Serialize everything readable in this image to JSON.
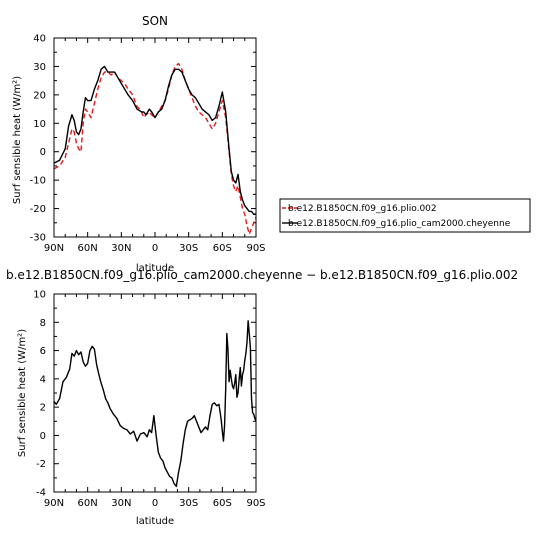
{
  "chart_data": [
    {
      "type": "line",
      "title": "SON",
      "xlabel": "latitude",
      "ylabel": "Surf sensible heat (W/m²)",
      "xlim": [
        90,
        -90
      ],
      "ylim": [
        -30,
        40
      ],
      "x_ticks": [
        "90N",
        "60N",
        "30N",
        "0",
        "30S",
        "60S",
        "90S"
      ],
      "y_ticks": [
        "40",
        "30",
        "20",
        "10",
        "0",
        "-10",
        "-20",
        "-30"
      ],
      "legend_position": "right",
      "series": [
        {
          "name": "b.e12.B1850CN.f09_g16.plio.002",
          "color": "#e31a1c",
          "style": "dashed",
          "x": [
            90,
            85,
            80,
            77,
            74,
            72,
            70,
            68,
            66,
            64,
            62,
            60,
            57,
            54,
            51,
            48,
            45,
            42,
            39,
            36,
            33,
            30,
            27,
            24,
            20,
            16,
            12,
            10,
            8,
            5,
            3,
            0,
            -3,
            -6,
            -9,
            -12,
            -15,
            -18,
            -21,
            -24,
            -27,
            -30,
            -33,
            -36,
            -39,
            -42,
            -45,
            -48,
            -51,
            -54,
            -57,
            -60,
            -63,
            -66,
            -68,
            -70,
            -72,
            -74,
            -76,
            -78,
            -80,
            -82,
            -84,
            -86,
            -88,
            -90
          ],
          "y": [
            -6,
            -5,
            -2,
            3,
            8,
            7,
            3,
            1,
            0,
            10,
            15,
            14,
            12,
            17,
            22,
            26,
            28,
            28,
            27,
            28,
            26,
            25,
            24,
            22,
            20,
            16,
            14,
            12,
            13,
            14,
            13,
            12,
            14,
            16,
            18,
            22,
            27,
            30,
            31,
            29,
            25,
            22,
            19,
            16,
            14,
            13,
            12,
            10,
            8,
            10,
            14,
            18,
            12,
            0,
            -8,
            -12,
            -14,
            -12,
            -16,
            -20,
            -22,
            -26,
            -29,
            -27,
            -25,
            -23
          ]
        },
        {
          "name": "b.e12.B1850CN.f09_g16.plio_cam2000.cheyenne",
          "color": "#000000",
          "style": "solid",
          "x": [
            90,
            85,
            80,
            77,
            74,
            72,
            70,
            68,
            66,
            64,
            62,
            60,
            57,
            54,
            51,
            48,
            45,
            42,
            39,
            36,
            33,
            30,
            27,
            24,
            20,
            16,
            12,
            10,
            8,
            5,
            3,
            0,
            -3,
            -6,
            -9,
            -12,
            -15,
            -18,
            -21,
            -24,
            -27,
            -30,
            -33,
            -36,
            -39,
            -42,
            -45,
            -48,
            -51,
            -54,
            -57,
            -60,
            -63,
            -66,
            -68,
            -70,
            -72,
            -74,
            -76,
            -78,
            -80,
            -82,
            -84,
            -86,
            -88,
            -90
          ],
          "y": [
            -4,
            -3,
            1,
            9,
            13,
            11,
            7,
            6,
            8,
            14,
            19,
            18,
            18,
            22,
            25,
            29,
            30,
            28,
            28,
            28,
            26,
            24,
            22,
            20,
            18,
            15,
            14,
            14,
            13,
            15,
            14,
            12,
            14,
            15,
            18,
            23,
            27,
            29,
            29,
            28,
            25,
            22,
            20,
            19,
            17,
            15,
            14,
            13,
            11,
            12,
            16,
            21,
            14,
            1,
            -7,
            -10,
            -11,
            -8,
            -14,
            -17,
            -19,
            -20,
            -21,
            -21,
            -22,
            -22
          ]
        }
      ]
    },
    {
      "type": "line",
      "title": "b.e12.B1850CN.f09_g16.plio_cam2000.cheyenne − b.e12.B1850CN.f09_g16.plio.002",
      "xlabel": "latitude",
      "ylabel": "Surf sensible heat (W/m²)",
      "xlim": [
        90,
        -90
      ],
      "ylim": [
        -4,
        10
      ],
      "x_ticks": [
        "90N",
        "60N",
        "30N",
        "0",
        "30S",
        "60S",
        "90S"
      ],
      "y_ticks": [
        "10",
        "8",
        "6",
        "4",
        "2",
        "0",
        "-2",
        "-4"
      ],
      "series": [
        {
          "color": "#000000",
          "style": "solid",
          "x": [
            90,
            88,
            85,
            82,
            79,
            76,
            74,
            72,
            70,
            68,
            66,
            64,
            62,
            60,
            58,
            56,
            54,
            52,
            50,
            48,
            46,
            44,
            42,
            40,
            37,
            34,
            31,
            28,
            25,
            22,
            19,
            16,
            13,
            10,
            7,
            5,
            3,
            1,
            -1,
            -3,
            -5,
            -7,
            -9,
            -11,
            -13,
            -15,
            -17,
            -19,
            -21,
            -23,
            -25,
            -27,
            -29,
            -31,
            -33,
            -35,
            -37,
            -39,
            -41,
            -43,
            -45,
            -47,
            -49,
            -51,
            -53,
            -55,
            -57,
            -59,
            -60,
            -61,
            -62,
            -63,
            -64,
            -65,
            -66,
            -67,
            -68,
            -69,
            -70,
            -71,
            -72,
            -73,
            -74,
            -75,
            -76,
            -77,
            -78,
            -79,
            -80,
            -81,
            -82,
            -83,
            -84,
            -85,
            -86,
            -87,
            -88,
            -89,
            -90
          ],
          "y": [
            2.4,
            2.2,
            2.6,
            3.8,
            4.1,
            4.7,
            5.8,
            5.6,
            6.0,
            5.7,
            5.9,
            5.2,
            4.9,
            5.1,
            6.0,
            6.3,
            6.1,
            5.0,
            4.3,
            3.7,
            3.2,
            2.6,
            2.3,
            1.9,
            1.5,
            1.2,
            0.7,
            0.5,
            0.4,
            0.1,
            0.3,
            -0.4,
            0.1,
            0.2,
            -0.1,
            0.4,
            0.2,
            1.4,
            0.0,
            -1.2,
            -1.6,
            -1.8,
            -2.3,
            -2.6,
            -2.9,
            -3.0,
            -3.4,
            -3.6,
            -2.6,
            -1.8,
            -0.6,
            0.4,
            1.0,
            1.1,
            1.2,
            1.4,
            1.0,
            0.6,
            0.2,
            0.4,
            0.6,
            0.4,
            1.4,
            2.2,
            2.3,
            2.1,
            2.2,
            1.1,
            0.3,
            -0.4,
            0.7,
            3.3,
            7.2,
            6.1,
            3.8,
            4.6,
            4.0,
            3.5,
            3.3,
            3.7,
            4.3,
            2.7,
            3.0,
            4.0,
            4.8,
            3.5,
            4.3,
            4.6,
            5.3,
            5.8,
            6.6,
            8.1,
            7.2,
            6.2,
            2.6,
            1.6,
            1.5,
            1.2,
            1.0
          ]
        }
      ]
    }
  ]
}
